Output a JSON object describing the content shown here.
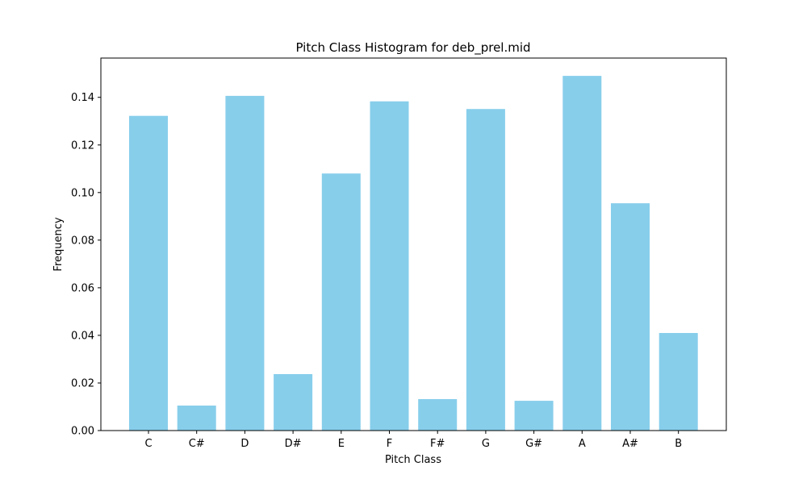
{
  "chart_data": {
    "type": "bar",
    "title": "Pitch Class Histogram for deb_prel.mid",
    "xlabel": "Pitch Class",
    "ylabel": "Frequency",
    "categories": [
      "C",
      "C#",
      "D",
      "D#",
      "E",
      "F",
      "F#",
      "G",
      "G#",
      "A",
      "A#",
      "B"
    ],
    "values": [
      0.1322,
      0.0105,
      0.1406,
      0.0237,
      0.108,
      0.1383,
      0.0132,
      0.1351,
      0.0125,
      0.149,
      0.0955,
      0.041
    ],
    "yticks": [
      "0.00",
      "0.02",
      "0.04",
      "0.06",
      "0.08",
      "0.10",
      "0.12",
      "0.14"
    ],
    "ylim": [
      0,
      0.1565
    ],
    "bar_color": "#87CEEB",
    "grid": false,
    "legend": "none"
  }
}
